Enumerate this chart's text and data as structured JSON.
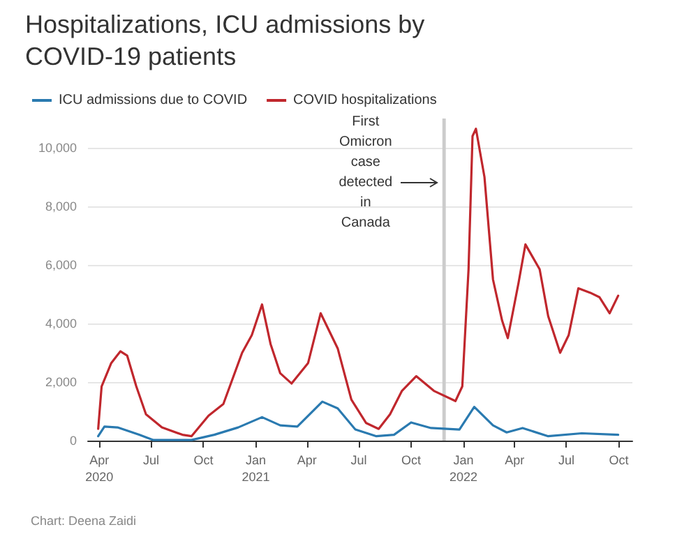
{
  "chart_data": {
    "type": "line",
    "title": "Hospitalizations, ICU admissions by COVID-19 patients",
    "xlim": [
      "2020-03-12",
      "2022-10-25"
    ],
    "xticks": [
      {
        "value": "2020-04-01",
        "label": "Apr\n2020"
      },
      {
        "value": "2020-07-01",
        "label": "Jul"
      },
      {
        "value": "2020-10-01",
        "label": "Oct"
      },
      {
        "value": "2021-01-01",
        "label": "Jan\n2021"
      },
      {
        "value": "2021-04-01",
        "label": "Apr"
      },
      {
        "value": "2021-07-01",
        "label": "Jul"
      },
      {
        "value": "2021-10-01",
        "label": "Oct"
      },
      {
        "value": "2022-01-01",
        "label": "Jan\n2022"
      },
      {
        "value": "2022-04-01",
        "label": "Apr"
      },
      {
        "value": "2022-07-01",
        "label": "Jul"
      },
      {
        "value": "2022-10-01",
        "label": "Oct"
      }
    ],
    "ylim": [
      0,
      11000
    ],
    "yticks": [
      0,
      {
        "value": 2000,
        "label": "2,000"
      },
      {
        "value": 4000,
        "label": "4,000"
      },
      {
        "value": 6000,
        "label": "6,000"
      },
      {
        "value": 8000,
        "label": "8,000"
      },
      {
        "value": 10000,
        "label": "10,000"
      }
    ],
    "grid": "y",
    "legend": "top left",
    "marker": "none",
    "line_style": "solid",
    "series": [
      {
        "name": "ICU admissions due to COVID",
        "color": "#2a7ab0",
        "x": [
          "2020-03-30",
          "2020-04-10",
          "2020-05-03",
          "2020-06-10",
          "2020-07-05",
          "2020-09-10",
          "2020-10-20",
          "2020-12-01",
          "2021-01-12",
          "2021-02-13",
          "2021-03-15",
          "2021-04-28",
          "2021-05-25",
          "2021-06-25",
          "2021-08-01",
          "2021-09-01",
          "2021-10-01",
          "2021-11-05",
          "2021-12-25",
          "2022-01-20",
          "2022-02-22",
          "2022-03-18",
          "2022-04-15",
          "2022-05-30",
          "2022-07-28",
          "2022-09-30"
        ],
        "values": [
          150,
          480,
          450,
          200,
          20,
          20,
          200,
          450,
          800,
          520,
          480,
          1330,
          1100,
          380,
          150,
          200,
          620,
          430,
          380,
          1150,
          520,
          280,
          430,
          150,
          250,
          200
        ]
      },
      {
        "name": "COVID hospitalizations",
        "color": "#c0272d",
        "x": [
          "2020-03-30",
          "2020-04-05",
          "2020-04-22",
          "2020-05-08",
          "2020-05-20",
          "2020-06-05",
          "2020-06-22",
          "2020-07-20",
          "2020-08-25",
          "2020-09-10",
          "2020-10-10",
          "2020-11-05",
          "2020-12-08",
          "2020-12-25",
          "2021-01-12",
          "2021-01-27",
          "2021-02-13",
          "2021-03-05",
          "2021-04-03",
          "2021-04-25",
          "2021-05-25",
          "2021-06-18",
          "2021-07-14",
          "2021-08-05",
          "2021-08-25",
          "2021-09-15",
          "2021-10-10",
          "2021-11-10",
          "2021-12-18",
          "2021-12-30",
          "2022-01-10",
          "2022-01-17",
          "2022-01-23",
          "2022-02-07",
          "2022-02-22",
          "2022-03-10",
          "2022-03-20",
          "2022-04-08",
          "2022-04-20",
          "2022-05-15",
          "2022-05-30",
          "2022-06-20",
          "2022-07-05",
          "2022-07-22",
          "2022-08-12",
          "2022-08-28",
          "2022-09-15",
          "2022-09-30"
        ],
        "values": [
          400,
          1850,
          2650,
          3050,
          2900,
          1850,
          900,
          450,
          200,
          150,
          850,
          1250,
          3000,
          3600,
          4650,
          3300,
          2300,
          1950,
          2650,
          4350,
          3150,
          1400,
          600,
          400,
          900,
          1700,
          2200,
          1700,
          1350,
          1850,
          5850,
          10400,
          10650,
          9000,
          5500,
          4100,
          3500,
          5400,
          6700,
          5850,
          4250,
          3000,
          3600,
          5200,
          5050,
          4900,
          4350,
          4950
        ]
      }
    ],
    "bands": [
      {
        "axis": "x",
        "from": "2021-11-25",
        "to": "2021-12-01",
        "label": "First Omicron case detected in Canada",
        "color": "#cccccc"
      }
    ],
    "annotations": [
      "Chart: Deena Zaidi"
    ]
  }
}
